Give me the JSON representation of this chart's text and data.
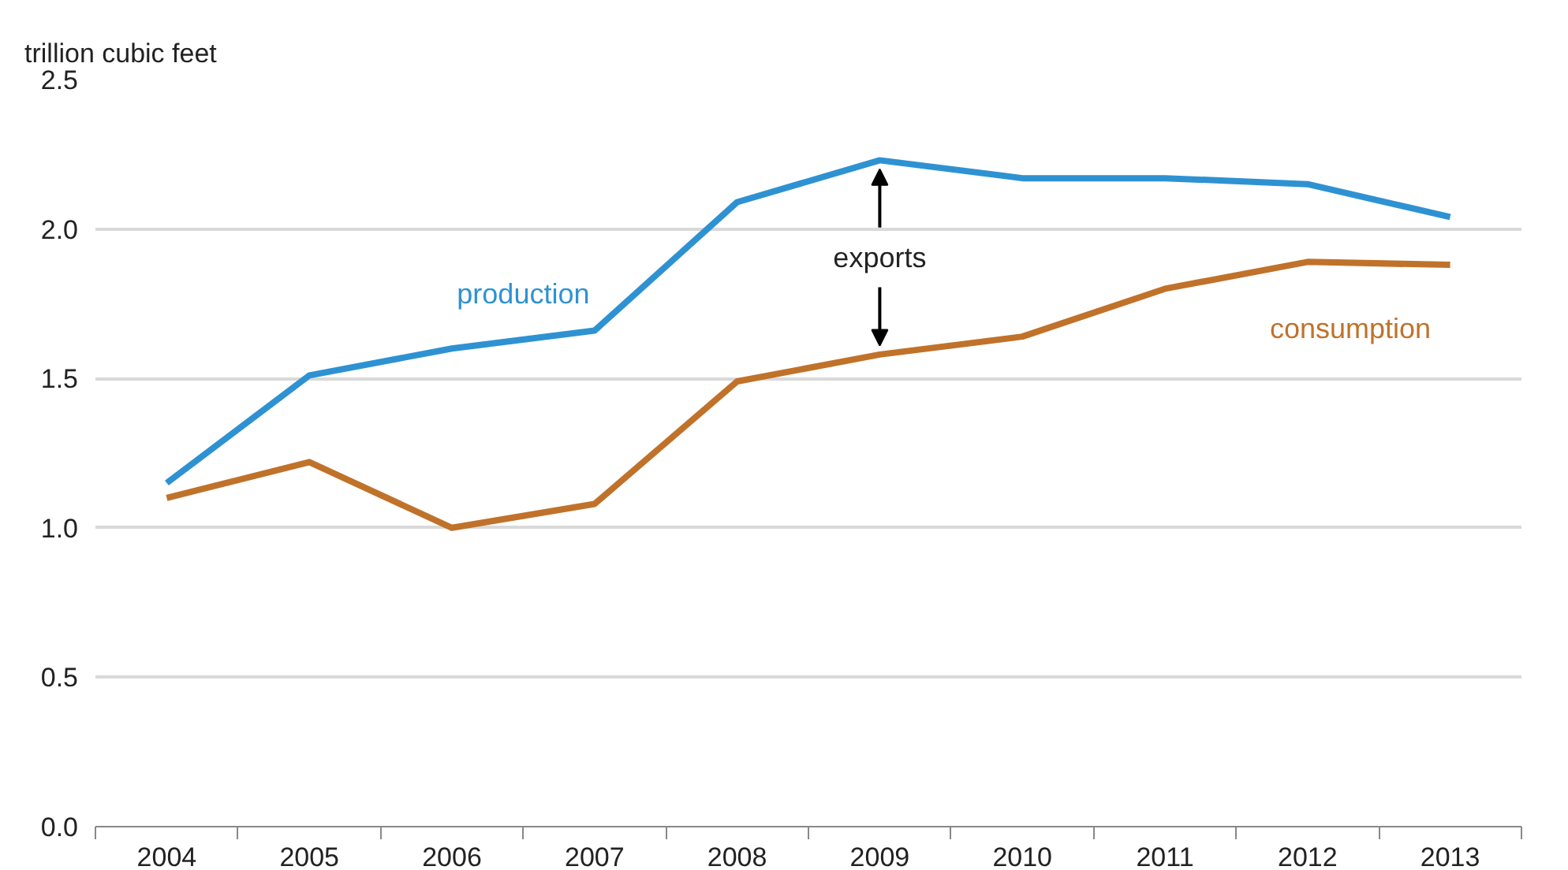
{
  "chart_data": {
    "type": "line",
    "ylabel": "trillion cubic feet",
    "categories": [
      "2004",
      "2005",
      "2006",
      "2007",
      "2008",
      "2009",
      "2010",
      "2011",
      "2012",
      "2013"
    ],
    "series": [
      {
        "name": "production",
        "color": "#2e92d2",
        "values": [
          1.15,
          1.51,
          1.6,
          1.66,
          2.09,
          2.23,
          2.17,
          2.17,
          2.15,
          2.04
        ]
      },
      {
        "name": "consumption",
        "color": "#c0722a",
        "values": [
          1.1,
          1.22,
          1.0,
          1.08,
          1.49,
          1.58,
          1.64,
          1.8,
          1.89,
          1.88
        ]
      }
    ],
    "annotations": [
      {
        "text": "exports",
        "x": "2009",
        "y": 2.23
      }
    ],
    "ylim": [
      0,
      2.5
    ],
    "yticks": [
      {
        "value": 0,
        "label": "0.0"
      },
      {
        "value": 0.5,
        "label": "0.5"
      },
      {
        "value": 1,
        "label": "1.0"
      },
      {
        "value": 1.5,
        "label": "1.5"
      },
      {
        "value": 2,
        "label": "2.0"
      },
      {
        "value": 2.5,
        "label": "2.5"
      }
    ],
    "grid": "y",
    "legend": false,
    "line_style": "solid",
    "marker": "none"
  }
}
